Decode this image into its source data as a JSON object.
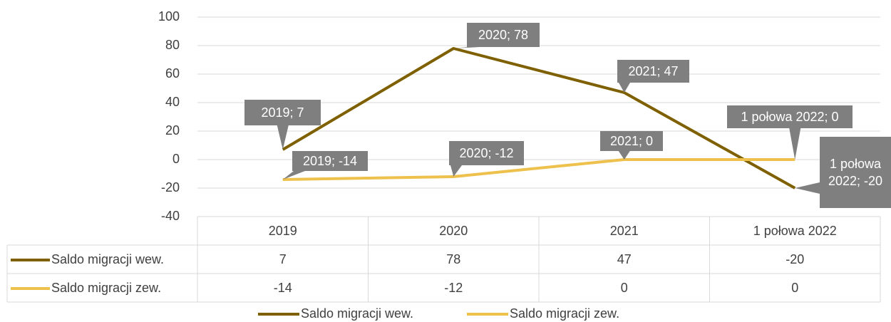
{
  "chart_data": {
    "type": "line",
    "categories": [
      "2019",
      "2020",
      "2021",
      "1 połowa 2022"
    ],
    "series": [
      {
        "name": "Saldo migracji wew.",
        "color": "#7f6000",
        "values": [
          7,
          78,
          47,
          -20
        ],
        "value_labels": [
          "2019; 7",
          "2020; 78",
          "2021; 47",
          "1 połowa 2022; -20"
        ]
      },
      {
        "name": "Saldo migracji zew.",
        "color": "#eec04c",
        "values": [
          -14,
          -12,
          0,
          0
        ],
        "value_labels": [
          "2019; -14",
          "2020; -12",
          "2021; 0",
          "1 połowa 2022; 0"
        ]
      }
    ],
    "ylim": [
      -40,
      100
    ],
    "yticks": [
      -40,
      -20,
      0,
      20,
      40,
      60,
      80,
      100
    ],
    "grid": true,
    "legend": "bottom"
  }
}
